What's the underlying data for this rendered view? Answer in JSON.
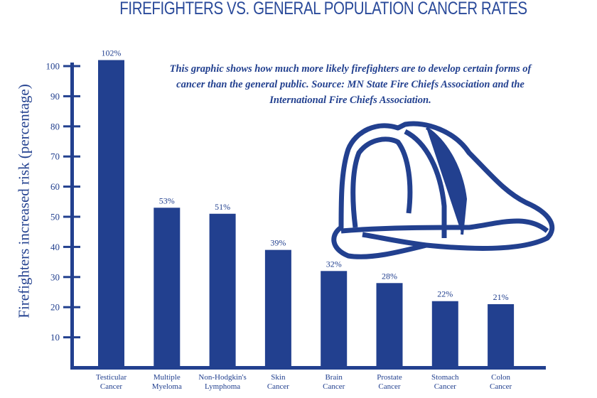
{
  "chart_data": {
    "type": "bar",
    "title": "FIREFIGHTERS VS. GENERAL POPULATION CANCER RATES",
    "annotation": "This graphic shows how much more likely firefighters are to develop certain forms of cancer than the general public. Source: MN State Fire Chiefs Association and the International Fire Chiefs Association.",
    "ylabel": "Firefighters increased risk (percentage)",
    "xlabel": "",
    "categories": [
      [
        "Testicular",
        "Cancer"
      ],
      [
        "Multiple",
        "Myeloma"
      ],
      [
        "Non-Hodgkin's",
        "Lymphoma"
      ],
      [
        "Skin",
        "Cancer"
      ],
      [
        "Brain",
        "Cancer"
      ],
      [
        "Prostate",
        "Cancer"
      ],
      [
        "Stomach",
        "Cancer"
      ],
      [
        "Colon",
        "Cancer"
      ]
    ],
    "values": [
      102,
      53,
      51,
      39,
      32,
      28,
      22,
      21
    ],
    "data_labels": [
      "102%",
      "53%",
      "51%",
      "39%",
      "32%",
      "28%",
      "22%",
      "21%"
    ],
    "yticks": [
      10,
      20,
      30,
      40,
      50,
      60,
      70,
      80,
      90,
      100
    ],
    "ylim": [
      0,
      100
    ],
    "grid": false,
    "bar_color": "#22408f",
    "decoration": "firefighter-helmet-icon"
  }
}
